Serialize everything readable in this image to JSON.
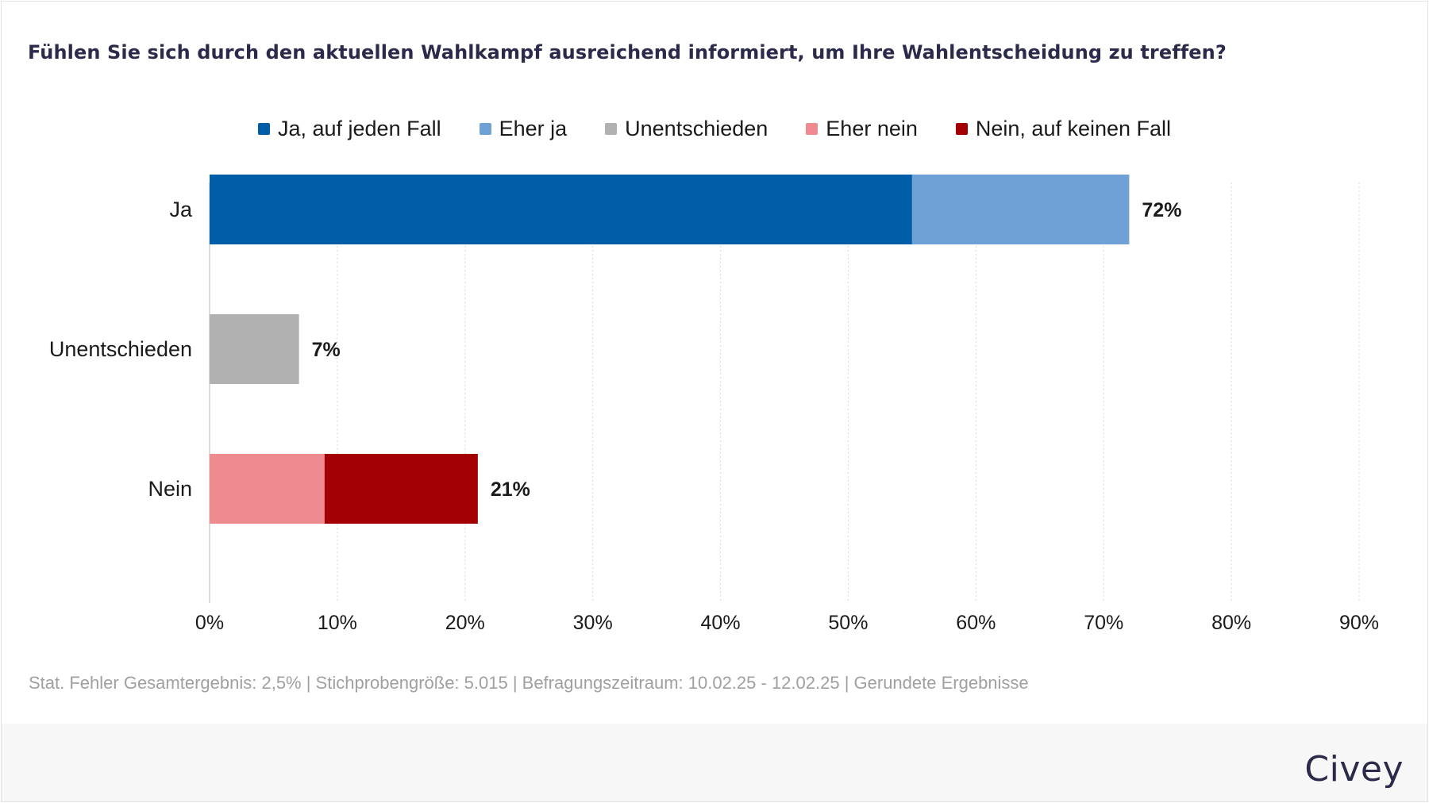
{
  "title": "Fühlen Sie sich durch den aktuellen Wahlkampf ausreichend informiert, um Ihre Wahlentscheidung zu treffen?",
  "legend": [
    {
      "label": "Ja, auf jeden Fall",
      "color": "#005ea8"
    },
    {
      "label": "Eher ja",
      "color": "#6fa1d6"
    },
    {
      "label": "Unentschieden",
      "color": "#b1b1b1"
    },
    {
      "label": "Eher nein",
      "color": "#ef8a91"
    },
    {
      "label": "Nein, auf keinen Fall",
      "color": "#a30006"
    }
  ],
  "chart_data": {
    "type": "bar",
    "orientation": "horizontal",
    "stacked": true,
    "categories": [
      "Ja",
      "Unentschieden",
      "Nein"
    ],
    "series": [
      {
        "name": "Ja, auf jeden Fall",
        "color": "#005ea8",
        "values": [
          55,
          0,
          0
        ]
      },
      {
        "name": "Eher ja",
        "color": "#6fa1d6",
        "values": [
          17,
          0,
          0
        ]
      },
      {
        "name": "Unentschieden",
        "color": "#b1b1b1",
        "values": [
          0,
          7,
          0
        ]
      },
      {
        "name": "Eher nein",
        "color": "#ef8a91",
        "values": [
          0,
          0,
          9
        ]
      },
      {
        "name": "Nein, auf keinen Fall",
        "color": "#a30006",
        "values": [
          0,
          0,
          12
        ]
      }
    ],
    "totals": [
      "72%",
      "7%",
      "21%"
    ],
    "x_ticks": [
      "0%",
      "10%",
      "20%",
      "30%",
      "40%",
      "50%",
      "60%",
      "70%",
      "80%",
      "90%"
    ],
    "xlim": [
      0,
      90
    ],
    "grid": true,
    "legend_position": "top-center"
  },
  "footnote": "Stat. Fehler Gesamtergebnis: 2,5% | Stichprobengröße: 5.015 | Befragungszeitraum: 10.02.25 - 12.02.25 | Gerundete Ergebnisse",
  "brand": "Civey"
}
